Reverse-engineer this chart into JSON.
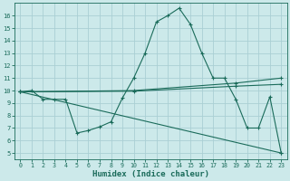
{
  "xlabel": "Humidex (Indice chaleur)",
  "background_color": "#cce9ea",
  "grid_color": "#aacfd4",
  "line_color": "#1a6b5a",
  "xlim": [
    -0.5,
    23.5
  ],
  "ylim": [
    4.5,
    17.0
  ],
  "yticks": [
    5,
    6,
    7,
    8,
    9,
    10,
    11,
    12,
    13,
    14,
    15,
    16
  ],
  "xticks": [
    0,
    1,
    2,
    3,
    4,
    5,
    6,
    7,
    8,
    9,
    10,
    11,
    12,
    13,
    14,
    15,
    16,
    17,
    18,
    19,
    20,
    21,
    22,
    23
  ],
  "series": [
    {
      "x": [
        0,
        1,
        2,
        3,
        4,
        5,
        6,
        7,
        8,
        9,
        10,
        11,
        12,
        13,
        14,
        15,
        16,
        17,
        18,
        19,
        20,
        21,
        22,
        23
      ],
      "y": [
        9.9,
        10.0,
        9.3,
        9.3,
        9.3,
        6.6,
        6.8,
        7.1,
        7.5,
        9.4,
        11.0,
        13.0,
        15.5,
        16.0,
        16.6,
        15.3,
        13.0,
        11.0,
        11.0,
        9.3,
        7.0,
        7.0,
        9.5,
        5.0
      ]
    },
    {
      "x": [
        0,
        10,
        19,
        23
      ],
      "y": [
        9.9,
        10.0,
        10.6,
        11.0
      ]
    },
    {
      "x": [
        0,
        10,
        19,
        23
      ],
      "y": [
        9.9,
        9.95,
        10.35,
        10.5
      ]
    },
    {
      "x": [
        0,
        23
      ],
      "y": [
        9.9,
        5.0
      ]
    }
  ]
}
